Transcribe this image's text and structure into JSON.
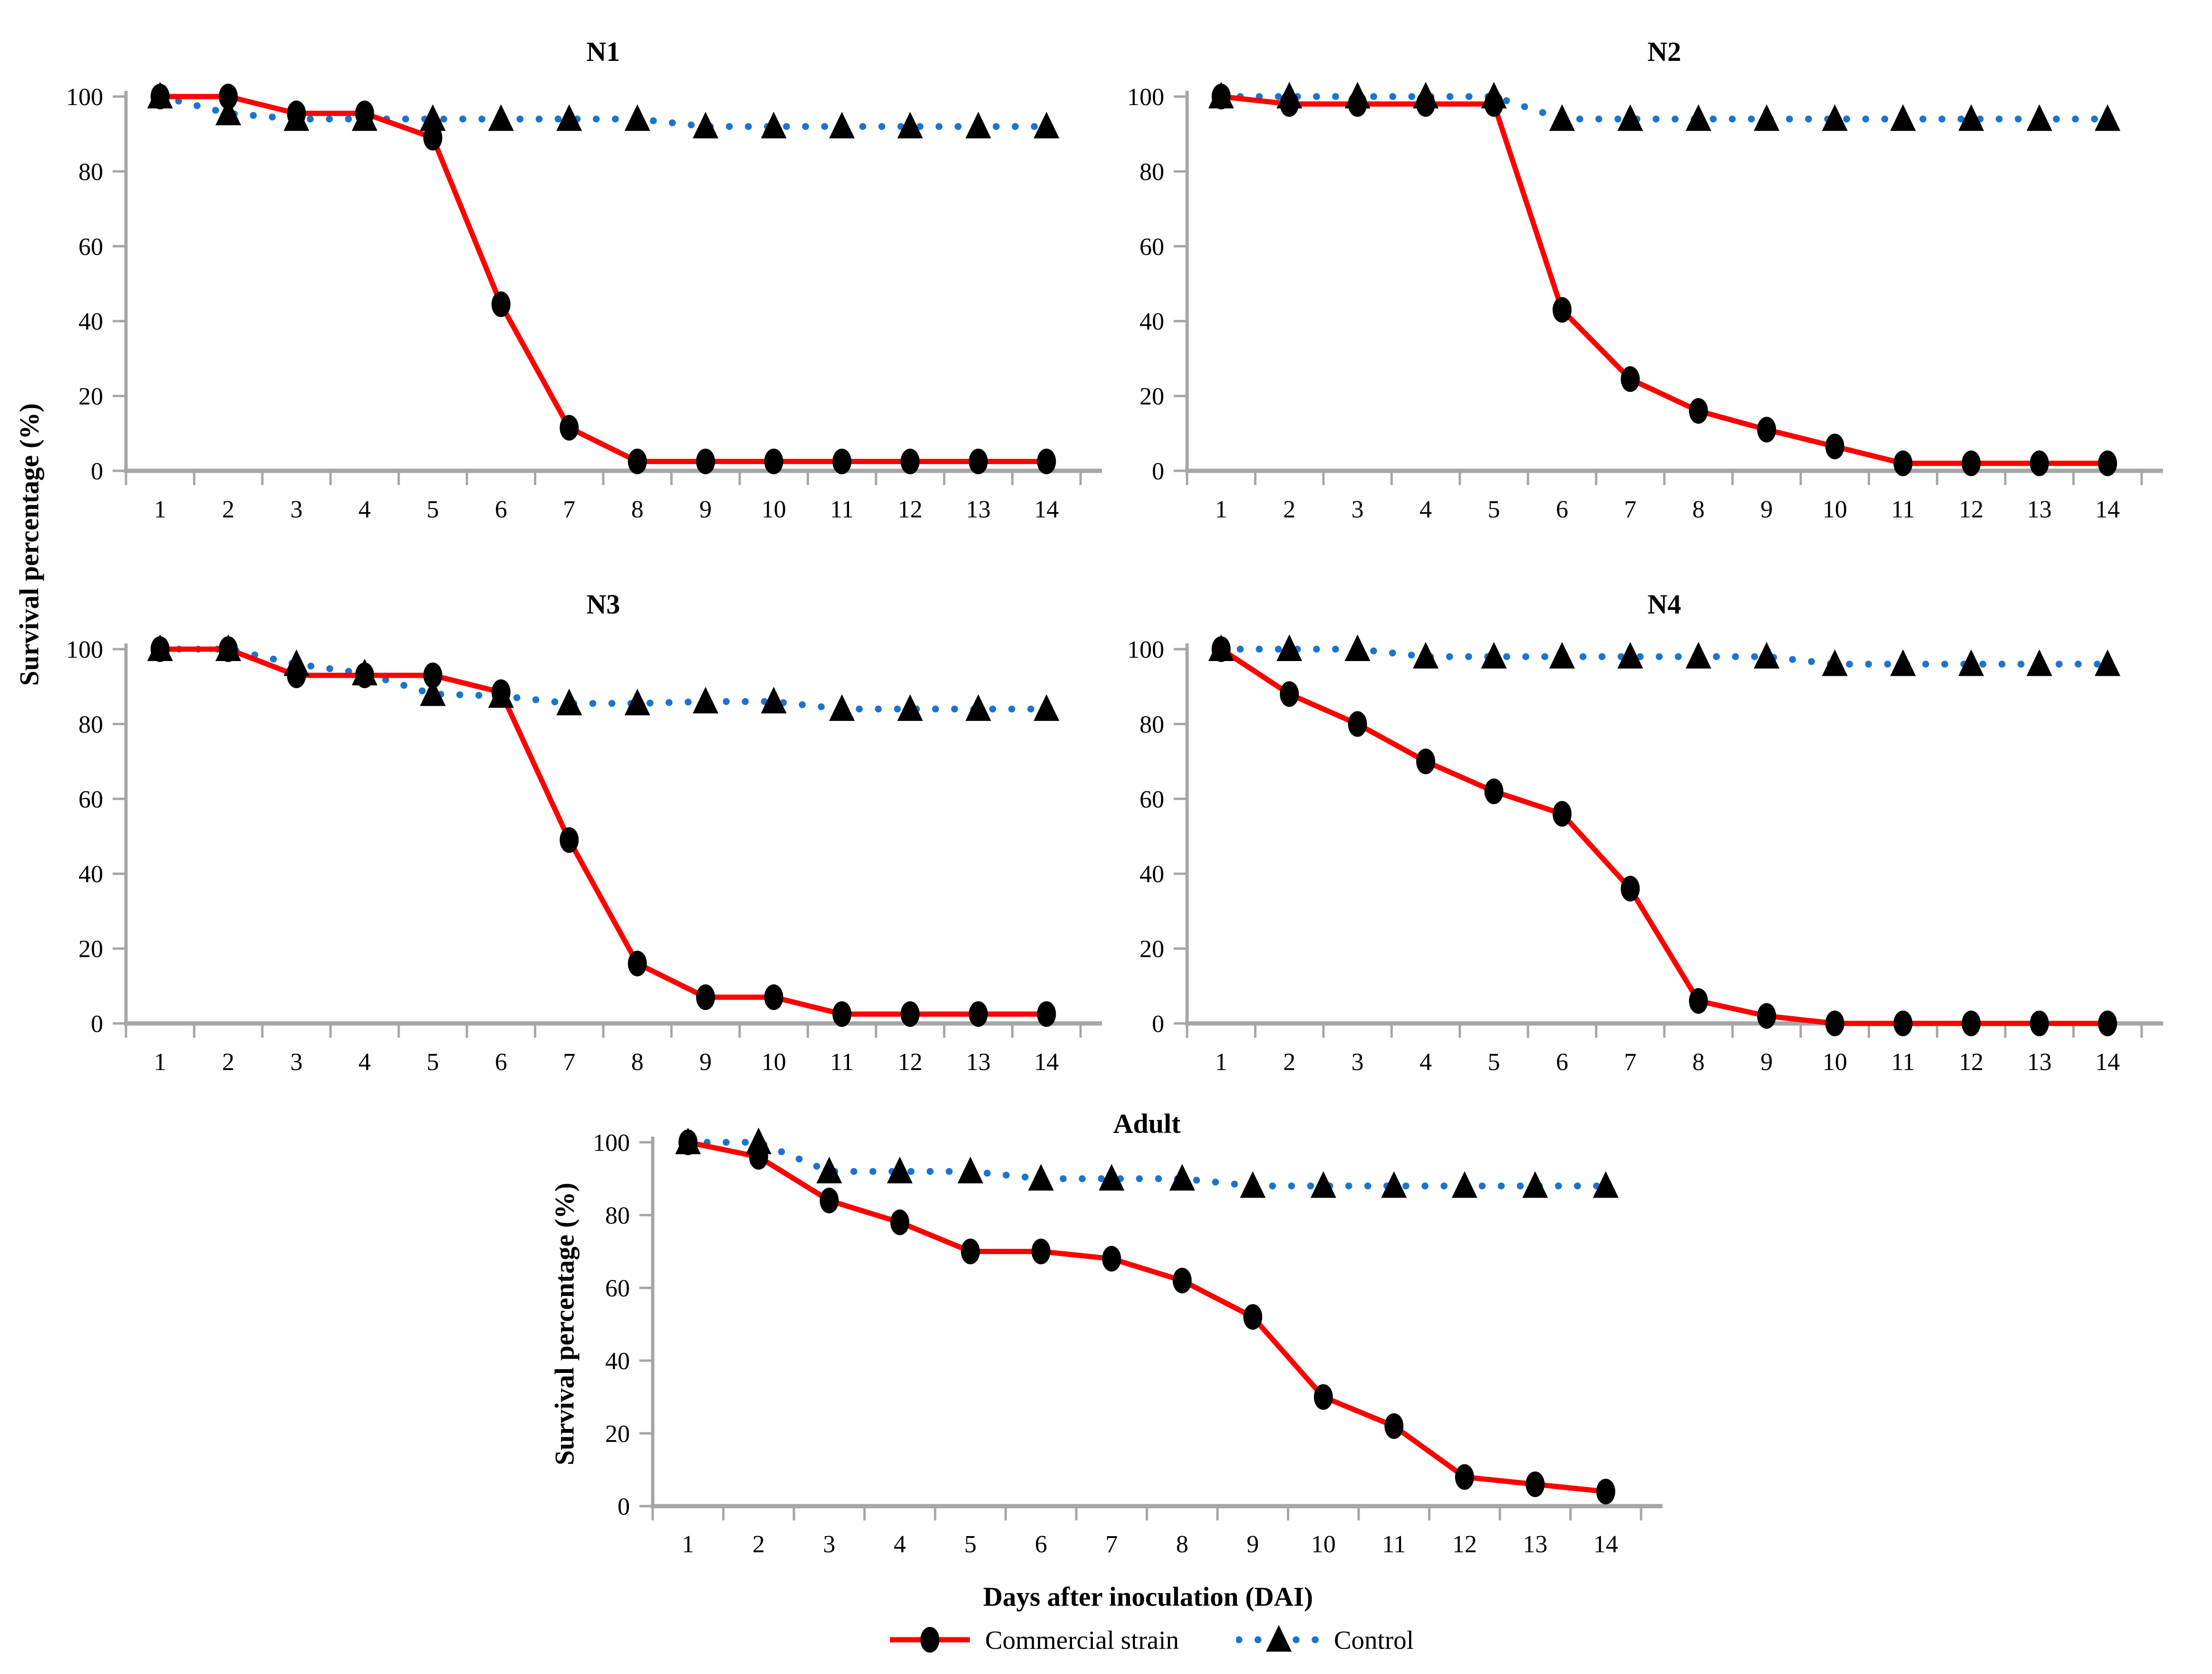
{
  "figure": {
    "ylabel": "Survival percentage (%)",
    "xlabel": "Days after inoculation (DAI)"
  },
  "styles": {
    "commercial_color": "#FF0000",
    "control_color": "#1B74CE",
    "marker_color": "#000000",
    "axis_color": "#A6A6A6"
  },
  "legend": [
    {
      "label": "Commercial strain",
      "key": "commercial",
      "marker": "circle-icon"
    },
    {
      "label": "Control",
      "key": "control",
      "marker": "triangle-icon"
    }
  ],
  "chart_data": [
    {
      "type": "line",
      "title": "N1",
      "x": [
        1,
        2,
        3,
        4,
        5,
        6,
        7,
        8,
        9,
        10,
        11,
        12,
        13,
        14
      ],
      "ylim": [
        0,
        100
      ],
      "yticks": [
        0,
        20,
        40,
        60,
        80,
        100
      ],
      "grid": false,
      "legend_position": "bottom",
      "series": [
        {
          "name": "Commercial strain",
          "key": "commercial",
          "values": [
            100,
            100,
            95.5,
            95.5,
            89,
            44.5,
            11.5,
            2.5,
            2.5,
            2.5,
            2.5,
            2.5,
            2.5,
            2.5
          ]
        },
        {
          "name": "Control",
          "key": "control",
          "values": [
            100,
            95.5,
            94,
            94,
            94,
            94,
            94,
            94,
            92,
            92,
            92,
            92,
            92,
            92
          ]
        }
      ]
    },
    {
      "type": "line",
      "title": "N2",
      "x": [
        1,
        2,
        3,
        4,
        5,
        6,
        7,
        8,
        9,
        10,
        11,
        12,
        13,
        14
      ],
      "ylim": [
        0,
        100
      ],
      "yticks": [
        0,
        20,
        40,
        60,
        80,
        100
      ],
      "grid": false,
      "legend_position": "bottom",
      "series": [
        {
          "name": "Commercial strain",
          "key": "commercial",
          "values": [
            100,
            98,
            98,
            98,
            98,
            43,
            24.5,
            16,
            11,
            6.5,
            2,
            2,
            2,
            2
          ]
        },
        {
          "name": "Control",
          "key": "control",
          "values": [
            100,
            100,
            100,
            100,
            100,
            94,
            94,
            94,
            94,
            94,
            94,
            94,
            94,
            94
          ]
        }
      ]
    },
    {
      "type": "line",
      "title": "N3",
      "x": [
        1,
        2,
        3,
        4,
        5,
        6,
        7,
        8,
        9,
        10,
        11,
        12,
        13,
        14
      ],
      "ylim": [
        0,
        100
      ],
      "yticks": [
        0,
        20,
        40,
        60,
        80,
        100
      ],
      "grid": false,
      "legend_position": "bottom",
      "series": [
        {
          "name": "Commercial strain",
          "key": "commercial",
          "values": [
            100,
            100,
            93,
            93,
            93,
            88.5,
            49,
            16,
            7,
            7,
            2.5,
            2.5,
            2.5,
            2.5
          ]
        },
        {
          "name": "Control",
          "key": "control",
          "values": [
            100,
            100,
            96,
            93.5,
            88,
            87.5,
            85.5,
            85.5,
            86,
            86,
            84,
            84,
            84,
            84
          ]
        }
      ]
    },
    {
      "type": "line",
      "title": "N4",
      "x": [
        1,
        2,
        3,
        4,
        5,
        6,
        7,
        8,
        9,
        10,
        11,
        12,
        13,
        14
      ],
      "ylim": [
        0,
        100
      ],
      "yticks": [
        0,
        20,
        40,
        60,
        80,
        100
      ],
      "grid": false,
      "legend_position": "bottom",
      "series": [
        {
          "name": "Commercial strain",
          "key": "commercial",
          "values": [
            100,
            88,
            80,
            70,
            62,
            56,
            36,
            6,
            2,
            0,
            0,
            0,
            0,
            0
          ]
        },
        {
          "name": "Control",
          "key": "control",
          "values": [
            100,
            100,
            100,
            98,
            98,
            98,
            98,
            98,
            98,
            96,
            96,
            96,
            96,
            96
          ]
        }
      ]
    },
    {
      "type": "line",
      "title": "Adult",
      "x": [
        1,
        2,
        3,
        4,
        5,
        6,
        7,
        8,
        9,
        10,
        11,
        12,
        13,
        14
      ],
      "ylim": [
        0,
        100
      ],
      "yticks": [
        0,
        20,
        40,
        60,
        80,
        100
      ],
      "grid": false,
      "legend_position": "bottom",
      "series": [
        {
          "name": "Commercial strain",
          "key": "commercial",
          "values": [
            100,
            96,
            84,
            78,
            70,
            70,
            68,
            62,
            52,
            30,
            22,
            8,
            6,
            4
          ]
        },
        {
          "name": "Control",
          "key": "control",
          "values": [
            100,
            100,
            92,
            92,
            92,
            90,
            90,
            90,
            88,
            88,
            88,
            88,
            88,
            88
          ]
        }
      ]
    }
  ]
}
